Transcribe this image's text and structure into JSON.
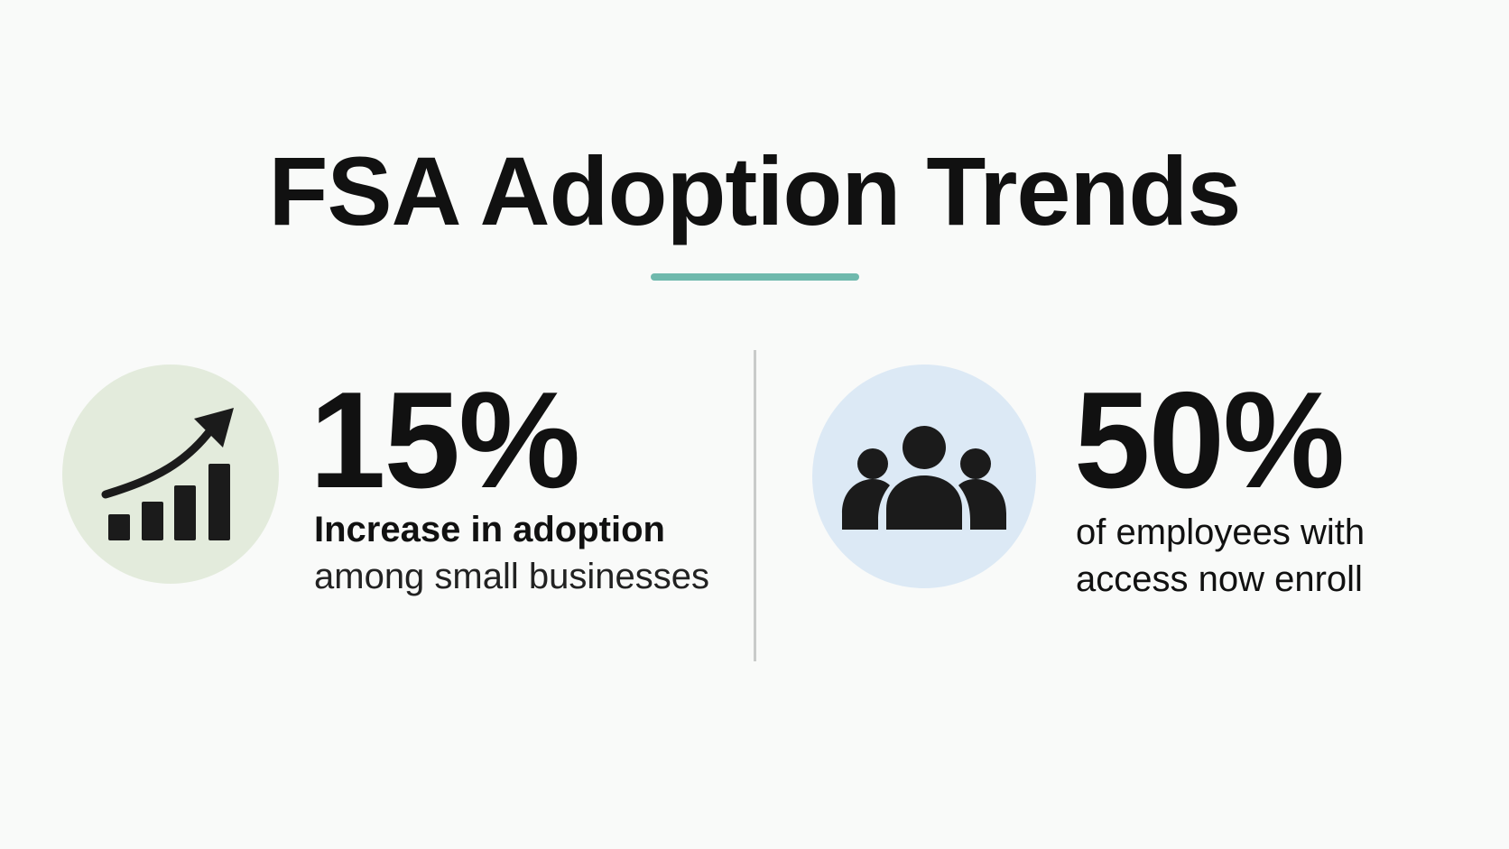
{
  "title": "FSA Adoption Trends",
  "colors": {
    "accent_underline": "#6fb9ad",
    "left_circle_bg": "#e3ebdc",
    "right_circle_bg": "#dce9f5",
    "icon_color": "#1b1b1b"
  },
  "stats": [
    {
      "value": "15%",
      "label_line1": "Increase in adoption",
      "label_line2": "among small businesses",
      "icon": "growth-chart-icon"
    },
    {
      "value": "50%",
      "label_line1": "of employees with",
      "label_line2": "access now enroll",
      "icon": "people-group-icon"
    }
  ]
}
